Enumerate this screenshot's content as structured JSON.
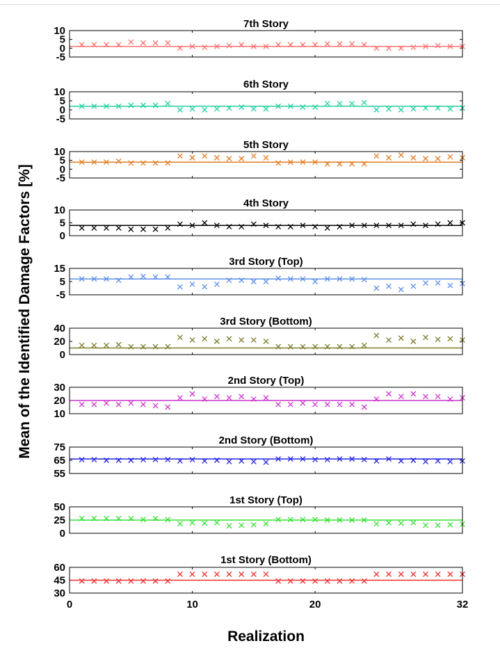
{
  "chart_data": {
    "type": "scatter",
    "xlabel": "Realization",
    "ylabel": "Mean of the Identified Damage Factors [%]",
    "xlim": [
      0,
      32
    ],
    "xticks": [
      0,
      10,
      20,
      32
    ],
    "x": [
      1,
      2,
      3,
      4,
      5,
      6,
      7,
      8,
      9,
      10,
      11,
      12,
      13,
      14,
      15,
      16,
      17,
      18,
      19,
      20,
      21,
      22,
      23,
      24,
      25,
      26,
      27,
      28,
      29,
      30,
      31,
      32
    ],
    "panels": [
      {
        "title": "7th Story",
        "color": "#ff7070",
        "ylim": [
          -5,
          10
        ],
        "yticks": [
          -5,
          0,
          5,
          10
        ],
        "reference": 1,
        "values": [
          2,
          2,
          2,
          2,
          3.5,
          3,
          3,
          3,
          0,
          1,
          0.5,
          1,
          1.5,
          2,
          1,
          1,
          2,
          2,
          2,
          2,
          2.5,
          2.5,
          2.5,
          2,
          0,
          0,
          0,
          0.5,
          1,
          1.5,
          1,
          1
        ]
      },
      {
        "title": "6th Story",
        "color": "#1ecfa0",
        "ylim": [
          -5,
          10
        ],
        "yticks": [
          -5,
          0,
          5,
          10
        ],
        "reference": 2,
        "values": [
          2,
          2,
          2,
          2,
          2.5,
          2.5,
          2.5,
          3.5,
          0,
          0.5,
          0,
          0.5,
          1,
          1.5,
          0.5,
          0.5,
          2,
          2,
          1.5,
          1.5,
          3.5,
          3.5,
          3.5,
          4,
          0,
          0.5,
          0,
          0.5,
          1,
          1,
          0.5,
          1
        ]
      },
      {
        "title": "5th Story",
        "color": "#e07b20",
        "ylim": [
          -5,
          10
        ],
        "yticks": [
          -5,
          0,
          5,
          10
        ],
        "reference": 4,
        "values": [
          4,
          4,
          4,
          4.5,
          3.5,
          3.5,
          3.5,
          3.5,
          7.5,
          6.5,
          7.5,
          6.5,
          6,
          6,
          7.5,
          6.5,
          3.5,
          4,
          4,
          4,
          3,
          3,
          3,
          3,
          7.5,
          6.5,
          8,
          6.5,
          6,
          6,
          7,
          6.5
        ]
      },
      {
        "title": "4th Story",
        "color": "#000000",
        "ylim": [
          0,
          10
        ],
        "yticks": [
          0,
          5,
          10
        ],
        "reference": 4,
        "values": [
          3,
          3,
          3,
          3,
          2.5,
          2.5,
          2.5,
          3,
          4.5,
          4,
          5,
          4,
          3.5,
          3.5,
          4.5,
          4,
          3.5,
          3.5,
          4,
          3.5,
          3,
          3.5,
          4,
          4,
          4,
          4,
          4,
          4.5,
          4,
          4.5,
          5,
          5
        ]
      },
      {
        "title": "3rd Story (Top)",
        "color": "#5b8de8",
        "ylim": [
          -5,
          15
        ],
        "yticks": [
          -5,
          5,
          15
        ],
        "reference": 7,
        "values": [
          7,
          7,
          7,
          6,
          8.5,
          9,
          8.5,
          8.5,
          1,
          3,
          1,
          3,
          6,
          6,
          5,
          5,
          7.5,
          7,
          7,
          5,
          7,
          7,
          7,
          6.5,
          0,
          1.5,
          -1,
          1.5,
          4,
          4,
          2,
          3.5
        ]
      },
      {
        "title": "3rd Story (Bottom)",
        "color": "#7a7a2a",
        "ylim": [
          0,
          40
        ],
        "yticks": [
          0,
          20,
          40
        ],
        "reference": 10,
        "values": [
          14,
          14,
          14,
          15,
          12,
          12,
          12,
          12,
          26,
          22,
          24,
          20,
          24,
          22,
          22,
          20,
          12,
          12,
          12,
          12,
          12,
          12,
          12,
          14,
          29,
          22,
          25,
          20,
          26,
          23,
          24,
          22
        ]
      },
      {
        "title": "2nd Story (Top)",
        "color": "#cc33cc",
        "ylim": [
          10,
          30
        ],
        "yticks": [
          10,
          20,
          30
        ],
        "reference": 20,
        "values": [
          17,
          17,
          18,
          17,
          18,
          17,
          16,
          15,
          22,
          25,
          21,
          23,
          22,
          23,
          21,
          22,
          17,
          17,
          18,
          17,
          17,
          17,
          17,
          15,
          21,
          25,
          23,
          25,
          23,
          23,
          21,
          22
        ]
      },
      {
        "title": "2nd Story (Bottom)",
        "color": "#2020e0",
        "ylim": [
          55,
          75
        ],
        "yticks": [
          55,
          65,
          75
        ],
        "reference": 66,
        "values": [
          65.5,
          65.5,
          65,
          65,
          65,
          65.5,
          65.5,
          65.5,
          64.5,
          65.5,
          64.5,
          65,
          64,
          64.5,
          64,
          63.5,
          66,
          66,
          66,
          65.5,
          65.5,
          66,
          66,
          65.5,
          64.5,
          66,
          64.5,
          65,
          64,
          64.5,
          64,
          64.5
        ]
      },
      {
        "title": "1st Story (Top)",
        "color": "#33e033",
        "ylim": [
          0,
          50
        ],
        "yticks": [
          0,
          25,
          50
        ],
        "reference": 25,
        "values": [
          28,
          28,
          28,
          28,
          28,
          26,
          28,
          26,
          18,
          20,
          19,
          20,
          14,
          15,
          16,
          18,
          26,
          26,
          26,
          26,
          25,
          25,
          25,
          25,
          18,
          20,
          19,
          20,
          15,
          15,
          16,
          17
        ]
      },
      {
        "title": "1st Story (Bottom)",
        "color": "#ee3030",
        "ylim": [
          30,
          60
        ],
        "yticks": [
          30,
          45,
          60
        ],
        "reference": 45,
        "values": [
          44,
          44,
          44,
          44,
          44,
          44,
          44,
          44,
          52,
          52,
          52,
          52,
          52,
          52,
          52,
          52,
          44,
          44,
          44,
          44,
          44,
          44,
          44,
          44,
          52,
          52,
          52,
          52,
          52,
          52,
          52,
          52
        ]
      }
    ]
  }
}
